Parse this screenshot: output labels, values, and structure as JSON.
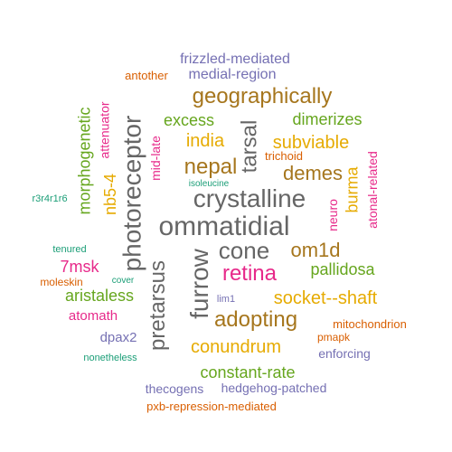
{
  "palette": {
    "teal": "#1b9e77",
    "orange": "#d95f02",
    "purple": "#7570b3",
    "magenta": "#e7298a",
    "green": "#66a61e",
    "gold": "#e6ab02",
    "brown": "#a6761d",
    "gray": "#666666"
  },
  "words": [
    {
      "text": "ommatidial",
      "color": "gray"
    },
    {
      "text": "crystalline",
      "color": "gray"
    },
    {
      "text": "photoreceptor",
      "color": "gray"
    },
    {
      "text": "furrow",
      "color": "gray"
    },
    {
      "text": "tarsal",
      "color": "gray"
    },
    {
      "text": "cone",
      "color": "gray"
    },
    {
      "text": "pretarsus",
      "color": "gray"
    },
    {
      "text": "geographically",
      "color": "brown"
    },
    {
      "text": "adopting",
      "color": "brown"
    },
    {
      "text": "nepal",
      "color": "brown"
    },
    {
      "text": "demes",
      "color": "brown"
    },
    {
      "text": "om1d",
      "color": "brown"
    },
    {
      "text": "morphogenetic",
      "color": "green"
    },
    {
      "text": "excess",
      "color": "green"
    },
    {
      "text": "dimerizes",
      "color": "green"
    },
    {
      "text": "pallidosa",
      "color": "green"
    },
    {
      "text": "aristaless",
      "color": "green"
    },
    {
      "text": "constant-rate",
      "color": "green"
    },
    {
      "text": "retina",
      "color": "magenta"
    },
    {
      "text": "nb5-4",
      "color": "gold"
    },
    {
      "text": "india",
      "color": "gold"
    },
    {
      "text": "subviable",
      "color": "gold"
    },
    {
      "text": "burma",
      "color": "gold"
    },
    {
      "text": "socket--shaft",
      "color": "gold"
    },
    {
      "text": "conundrum",
      "color": "gold"
    },
    {
      "text": "attenuator",
      "color": "magenta"
    },
    {
      "text": "mid-late",
      "color": "magenta"
    },
    {
      "text": "neuro",
      "color": "magenta"
    },
    {
      "text": "atonal-related",
      "color": "magenta"
    },
    {
      "text": "7msk",
      "color": "magenta"
    },
    {
      "text": "atomath",
      "color": "magenta"
    },
    {
      "text": "frizzled-mediated",
      "color": "purple"
    },
    {
      "text": "medial-region",
      "color": "purple"
    },
    {
      "text": "dpax2",
      "color": "purple"
    },
    {
      "text": "enforcing",
      "color": "purple"
    },
    {
      "text": "thecogens",
      "color": "purple"
    },
    {
      "text": "hedgehog-patched",
      "color": "purple"
    },
    {
      "text": "lim1",
      "color": "purple"
    },
    {
      "text": "antother",
      "color": "orange"
    },
    {
      "text": "trichoid",
      "color": "orange"
    },
    {
      "text": "mitochondrion",
      "color": "orange"
    },
    {
      "text": "pmapk",
      "color": "orange"
    },
    {
      "text": "moleskin",
      "color": "orange"
    },
    {
      "text": "pxb-repression-mediated",
      "color": "orange"
    },
    {
      "text": "isoleucine",
      "color": "teal"
    },
    {
      "text": "r3r4r1r6",
      "color": "teal"
    },
    {
      "text": "tenured",
      "color": "teal"
    },
    {
      "text": "cover",
      "color": "teal"
    },
    {
      "text": "nonetheless",
      "color": "teal"
    }
  ]
}
